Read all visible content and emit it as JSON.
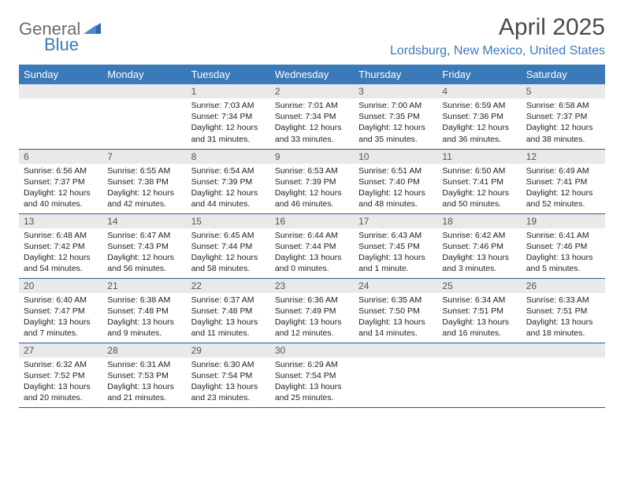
{
  "logo": {
    "general": "General",
    "blue": "Blue"
  },
  "title": "April 2025",
  "location": "Lordsburg, New Mexico, United States",
  "colors": {
    "header_bg": "#3a7ab8",
    "header_text": "#ffffff",
    "daynum_bg": "#e9e9e9",
    "border": "#2a5a8a",
    "logo_gray": "#6a6a6a",
    "logo_blue": "#3a7ab8"
  },
  "weekdays": [
    "Sunday",
    "Monday",
    "Tuesday",
    "Wednesday",
    "Thursday",
    "Friday",
    "Saturday"
  ],
  "weeks": [
    [
      null,
      null,
      {
        "n": "1",
        "sr": "Sunrise: 7:03 AM",
        "ss": "Sunset: 7:34 PM",
        "dl": "Daylight: 12 hours and 31 minutes."
      },
      {
        "n": "2",
        "sr": "Sunrise: 7:01 AM",
        "ss": "Sunset: 7:34 PM",
        "dl": "Daylight: 12 hours and 33 minutes."
      },
      {
        "n": "3",
        "sr": "Sunrise: 7:00 AM",
        "ss": "Sunset: 7:35 PM",
        "dl": "Daylight: 12 hours and 35 minutes."
      },
      {
        "n": "4",
        "sr": "Sunrise: 6:59 AM",
        "ss": "Sunset: 7:36 PM",
        "dl": "Daylight: 12 hours and 36 minutes."
      },
      {
        "n": "5",
        "sr": "Sunrise: 6:58 AM",
        "ss": "Sunset: 7:37 PM",
        "dl": "Daylight: 12 hours and 38 minutes."
      }
    ],
    [
      {
        "n": "6",
        "sr": "Sunrise: 6:56 AM",
        "ss": "Sunset: 7:37 PM",
        "dl": "Daylight: 12 hours and 40 minutes."
      },
      {
        "n": "7",
        "sr": "Sunrise: 6:55 AM",
        "ss": "Sunset: 7:38 PM",
        "dl": "Daylight: 12 hours and 42 minutes."
      },
      {
        "n": "8",
        "sr": "Sunrise: 6:54 AM",
        "ss": "Sunset: 7:39 PM",
        "dl": "Daylight: 12 hours and 44 minutes."
      },
      {
        "n": "9",
        "sr": "Sunrise: 6:53 AM",
        "ss": "Sunset: 7:39 PM",
        "dl": "Daylight: 12 hours and 46 minutes."
      },
      {
        "n": "10",
        "sr": "Sunrise: 6:51 AM",
        "ss": "Sunset: 7:40 PM",
        "dl": "Daylight: 12 hours and 48 minutes."
      },
      {
        "n": "11",
        "sr": "Sunrise: 6:50 AM",
        "ss": "Sunset: 7:41 PM",
        "dl": "Daylight: 12 hours and 50 minutes."
      },
      {
        "n": "12",
        "sr": "Sunrise: 6:49 AM",
        "ss": "Sunset: 7:41 PM",
        "dl": "Daylight: 12 hours and 52 minutes."
      }
    ],
    [
      {
        "n": "13",
        "sr": "Sunrise: 6:48 AM",
        "ss": "Sunset: 7:42 PM",
        "dl": "Daylight: 12 hours and 54 minutes."
      },
      {
        "n": "14",
        "sr": "Sunrise: 6:47 AM",
        "ss": "Sunset: 7:43 PM",
        "dl": "Daylight: 12 hours and 56 minutes."
      },
      {
        "n": "15",
        "sr": "Sunrise: 6:45 AM",
        "ss": "Sunset: 7:44 PM",
        "dl": "Daylight: 12 hours and 58 minutes."
      },
      {
        "n": "16",
        "sr": "Sunrise: 6:44 AM",
        "ss": "Sunset: 7:44 PM",
        "dl": "Daylight: 13 hours and 0 minutes."
      },
      {
        "n": "17",
        "sr": "Sunrise: 6:43 AM",
        "ss": "Sunset: 7:45 PM",
        "dl": "Daylight: 13 hours and 1 minute."
      },
      {
        "n": "18",
        "sr": "Sunrise: 6:42 AM",
        "ss": "Sunset: 7:46 PM",
        "dl": "Daylight: 13 hours and 3 minutes."
      },
      {
        "n": "19",
        "sr": "Sunrise: 6:41 AM",
        "ss": "Sunset: 7:46 PM",
        "dl": "Daylight: 13 hours and 5 minutes."
      }
    ],
    [
      {
        "n": "20",
        "sr": "Sunrise: 6:40 AM",
        "ss": "Sunset: 7:47 PM",
        "dl": "Daylight: 13 hours and 7 minutes."
      },
      {
        "n": "21",
        "sr": "Sunrise: 6:38 AM",
        "ss": "Sunset: 7:48 PM",
        "dl": "Daylight: 13 hours and 9 minutes."
      },
      {
        "n": "22",
        "sr": "Sunrise: 6:37 AM",
        "ss": "Sunset: 7:48 PM",
        "dl": "Daylight: 13 hours and 11 minutes."
      },
      {
        "n": "23",
        "sr": "Sunrise: 6:36 AM",
        "ss": "Sunset: 7:49 PM",
        "dl": "Daylight: 13 hours and 12 minutes."
      },
      {
        "n": "24",
        "sr": "Sunrise: 6:35 AM",
        "ss": "Sunset: 7:50 PM",
        "dl": "Daylight: 13 hours and 14 minutes."
      },
      {
        "n": "25",
        "sr": "Sunrise: 6:34 AM",
        "ss": "Sunset: 7:51 PM",
        "dl": "Daylight: 13 hours and 16 minutes."
      },
      {
        "n": "26",
        "sr": "Sunrise: 6:33 AM",
        "ss": "Sunset: 7:51 PM",
        "dl": "Daylight: 13 hours and 18 minutes."
      }
    ],
    [
      {
        "n": "27",
        "sr": "Sunrise: 6:32 AM",
        "ss": "Sunset: 7:52 PM",
        "dl": "Daylight: 13 hours and 20 minutes."
      },
      {
        "n": "28",
        "sr": "Sunrise: 6:31 AM",
        "ss": "Sunset: 7:53 PM",
        "dl": "Daylight: 13 hours and 21 minutes."
      },
      {
        "n": "29",
        "sr": "Sunrise: 6:30 AM",
        "ss": "Sunset: 7:54 PM",
        "dl": "Daylight: 13 hours and 23 minutes."
      },
      {
        "n": "30",
        "sr": "Sunrise: 6:29 AM",
        "ss": "Sunset: 7:54 PM",
        "dl": "Daylight: 13 hours and 25 minutes."
      },
      null,
      null,
      null
    ]
  ]
}
